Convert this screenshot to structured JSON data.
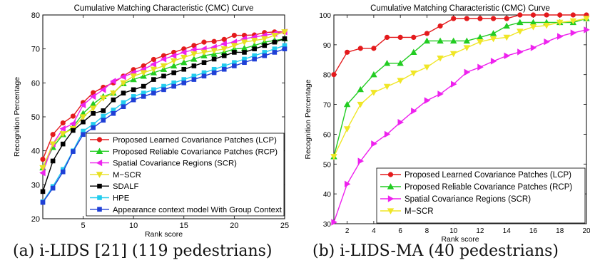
{
  "captions": {
    "a": "(a) i-LIDS [21] (119 pedestrians)",
    "b": "(b) i-LIDS-MA (40 pedestrians)"
  },
  "chart_data": [
    {
      "type": "line",
      "title": "Cumulative Matching Characteristic (CMC) Curve",
      "xlabel": "Rank score",
      "ylabel": "Recognition Percentage",
      "xlim": [
        1,
        25
      ],
      "ylim": [
        20,
        80
      ],
      "xticks": [
        5,
        10,
        15,
        20,
        25
      ],
      "yticks": [
        20,
        30,
        40,
        50,
        60,
        70,
        80
      ],
      "grid": false,
      "legend_position": "bottom-right",
      "series": [
        {
          "name": "Proposed Learned Covariance Patches (LCP)",
          "color": "#e41a1c",
          "marker": "circle",
          "values": [
            37.5,
            44.8,
            48.2,
            50.2,
            54.2,
            57.1,
            58.7,
            60.0,
            62.0,
            63.9,
            65.0,
            66.9,
            68.0,
            69.0,
            70.0,
            71.0,
            72.0,
            72.2,
            72.8,
            74.0,
            74.0,
            74.1,
            74.8,
            75.0,
            75.0
          ]
        },
        {
          "name": "Proposed Reliable Covariance Patches (RCP)",
          "color": "#22cc22",
          "marker": "triangle",
          "values": [
            35.0,
            41.0,
            44.8,
            47.0,
            51.0,
            53.8,
            56.0,
            57.0,
            59.8,
            61.0,
            62.0,
            63.0,
            64.0,
            65.0,
            66.0,
            67.0,
            68.0,
            68.5,
            69.0,
            70.0,
            70.2,
            71.0,
            72.0,
            72.5,
            73.0
          ]
        },
        {
          "name": "Spatial Covariance Regions (SCR)",
          "color": "#ee22ee",
          "marker": "triangle-left",
          "values": [
            33.5,
            42.0,
            46.5,
            48.0,
            53.5,
            56.0,
            58.0,
            60.5,
            61.8,
            63.0,
            64.0,
            65.5,
            67.0,
            68.0,
            69.0,
            69.8,
            70.0,
            70.5,
            71.5,
            72.0,
            73.0,
            73.5,
            74.0,
            74.5,
            75.0
          ]
        },
        {
          "name": "M−SCR",
          "color": "#e8e020",
          "marker": "triangle-down",
          "values": [
            35.0,
            42.0,
            45.0,
            46.5,
            50.0,
            52.5,
            55.5,
            57.0,
            60.0,
            62.0,
            63.0,
            64.0,
            65.0,
            66.5,
            67.5,
            68.5,
            69.0,
            69.5,
            70.0,
            71.0,
            72.0,
            72.5,
            73.0,
            74.0,
            75.0
          ]
        },
        {
          "name": "SDALF",
          "color": "#000000",
          "marker": "square",
          "values": [
            28.0,
            37.0,
            42.0,
            46.0,
            48.5,
            51.0,
            51.8,
            55.0,
            57.0,
            58.0,
            59.0,
            61.0,
            62.0,
            63.0,
            64.0,
            65.0,
            66.0,
            67.0,
            68.0,
            69.0,
            69.0,
            70.0,
            71.0,
            72.0,
            73.0
          ]
        },
        {
          "name": "HPE",
          "color": "#22ccee",
          "marker": "square",
          "values": [
            25.0,
            29.5,
            34.5,
            40.0,
            45.8,
            47.8,
            50.2,
            52.0,
            54.2,
            56.0,
            57.0,
            58.0,
            59.0,
            60.0,
            61.0,
            62.0,
            63.0,
            64.0,
            65.0,
            66.0,
            67.0,
            68.0,
            69.0,
            70.0,
            71.0
          ]
        },
        {
          "name": "Appearance context model With Group Context",
          "color": "#1f3fd6",
          "marker": "square",
          "values": [
            24.8,
            29.0,
            33.8,
            39.8,
            44.8,
            46.8,
            49.0,
            51.0,
            53.0,
            55.0,
            56.0,
            57.0,
            58.0,
            59.0,
            60.0,
            61.0,
            62.0,
            63.0,
            64.0,
            65.0,
            66.0,
            67.0,
            68.0,
            69.0,
            70.0
          ]
        }
      ]
    },
    {
      "type": "line",
      "title": "Cumulative Matching Characteristic (CMC) Curve",
      "xlabel": "Rank score",
      "ylabel": "Recognition Percentage",
      "xlim": [
        1,
        20
      ],
      "ylim": [
        30,
        100
      ],
      "xticks": [
        2,
        4,
        6,
        8,
        10,
        12,
        14,
        16,
        18,
        20
      ],
      "yticks": [
        30,
        40,
        50,
        60,
        70,
        80,
        90,
        100
      ],
      "grid": false,
      "legend_position": "bottom-right",
      "series": [
        {
          "name": "Proposed Learned Covariance Patches (LCP)",
          "color": "#e41a1c",
          "marker": "circle",
          "values": [
            80.0,
            87.5,
            88.8,
            88.8,
            92.5,
            92.5,
            92.5,
            93.8,
            96.3,
            98.8,
            98.8,
            98.8,
            98.8,
            98.8,
            100.0,
            100.0,
            100.0,
            100.0,
            100.0,
            100.0
          ]
        },
        {
          "name": "Proposed Reliable Covariance Patches (RCP)",
          "color": "#22cc22",
          "marker": "triangle",
          "values": [
            52.5,
            70.0,
            75.0,
            80.0,
            83.8,
            83.8,
            87.5,
            91.3,
            91.3,
            91.3,
            91.3,
            92.5,
            93.8,
            96.3,
            97.5,
            97.5,
            97.5,
            97.5,
            97.5,
            98.8
          ]
        },
        {
          "name": "Spatial Covariance Regions (SCR)",
          "color": "#ee22ee",
          "marker": "triangle-right",
          "values": [
            30.5,
            43.3,
            51.0,
            56.8,
            60.0,
            64.0,
            67.8,
            71.3,
            73.5,
            76.8,
            80.8,
            82.5,
            84.5,
            86.3,
            87.6,
            89.0,
            91.0,
            92.8,
            94.0,
            95.0
          ]
        },
        {
          "name": "M−SCR",
          "color": "#f0e626",
          "marker": "triangle-down",
          "values": [
            52.5,
            61.8,
            70.0,
            74.0,
            76.0,
            78.0,
            80.5,
            82.5,
            85.5,
            87.0,
            89.0,
            91.0,
            92.0,
            92.5,
            94.5,
            96.0,
            96.5,
            97.5,
            98.0,
            98.8
          ]
        }
      ]
    }
  ]
}
